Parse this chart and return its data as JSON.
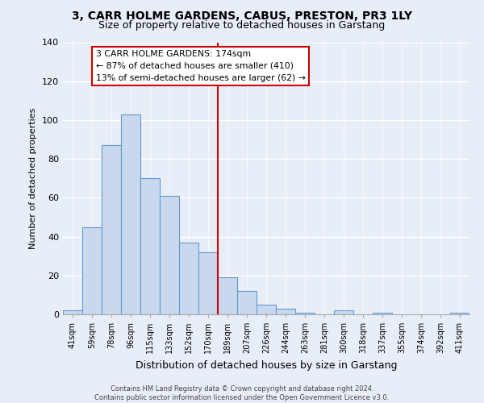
{
  "title": "3, CARR HOLME GARDENS, CABUS, PRESTON, PR3 1LY",
  "subtitle": "Size of property relative to detached houses in Garstang",
  "xlabel": "Distribution of detached houses by size in Garstang",
  "ylabel": "Number of detached properties",
  "bar_labels": [
    "41sqm",
    "59sqm",
    "78sqm",
    "96sqm",
    "115sqm",
    "133sqm",
    "152sqm",
    "170sqm",
    "189sqm",
    "207sqm",
    "226sqm",
    "244sqm",
    "263sqm",
    "281sqm",
    "300sqm",
    "318sqm",
    "337sqm",
    "355sqm",
    "374sqm",
    "392sqm",
    "411sqm"
  ],
  "bar_values": [
    2,
    45,
    87,
    103,
    70,
    61,
    37,
    32,
    19,
    12,
    5,
    3,
    1,
    0,
    2,
    0,
    1,
    0,
    0,
    0,
    1
  ],
  "bar_color": "#c8d8ee",
  "bar_edge_color": "#6699cc",
  "vline_x": 7.5,
  "vline_color": "#cc0000",
  "annotation_title": "3 CARR HOLME GARDENS: 174sqm",
  "annotation_line1": "← 87% of detached houses are smaller (410)",
  "annotation_line2": "13% of semi-detached houses are larger (62) →",
  "annotation_box_color": "#ffffff",
  "annotation_box_edge": "#cc0000",
  "ylim": [
    0,
    140
  ],
  "yticks": [
    0,
    20,
    40,
    60,
    80,
    100,
    120,
    140
  ],
  "footer_line1": "Contains HM Land Registry data © Crown copyright and database right 2024.",
  "footer_line2": "Contains public sector information licensed under the Open Government Licence v3.0.",
  "background_color": "#e8eef8"
}
